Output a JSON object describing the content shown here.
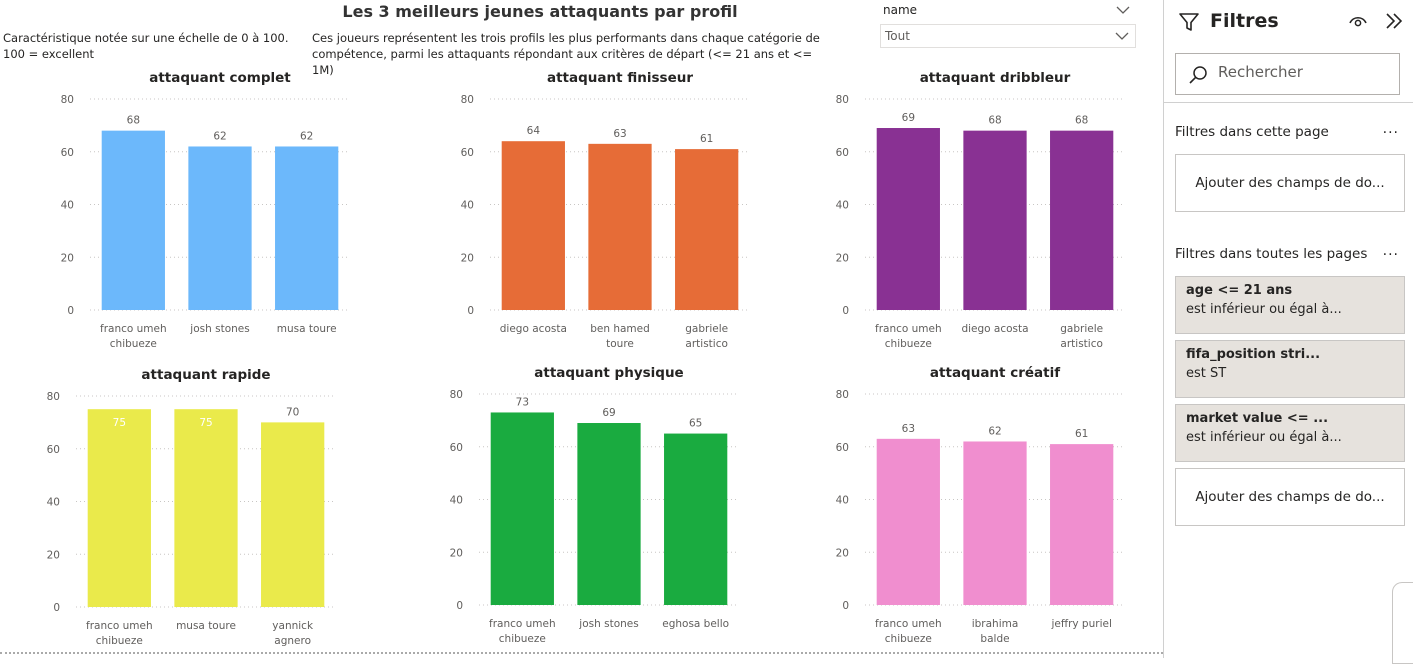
{
  "report": {
    "title": "Les 3 meilleurs jeunes attaquants par profil",
    "note_left": "Caractéristique notée sur une échelle de 0 à 100.\n100 = excellent",
    "note_mid": "Ces joueurs représentent les trois profils les plus performants dans chaque catégorie de\ncompétence, parmi les attaquants répondant aux critères de départ (<= 21 ans et <= 1M)",
    "slicer": {
      "label": "name",
      "value": "Tout"
    }
  },
  "chart_data": [
    {
      "type": "bar",
      "title": "attaquant complet",
      "color": "#6cb8fb",
      "ylim": [
        0,
        80
      ],
      "yticks": [
        0,
        20,
        40,
        60,
        80
      ],
      "grid": true,
      "categories": [
        "franco umeh\nchibueze",
        "josh stones",
        "musa toure"
      ],
      "values": [
        68,
        62,
        62
      ],
      "labels_inside": [
        false,
        false,
        false
      ]
    },
    {
      "type": "bar",
      "title": "attaquant finisseur",
      "color": "#e66c37",
      "ylim": [
        0,
        80
      ],
      "yticks": [
        0,
        20,
        40,
        60,
        80
      ],
      "grid": true,
      "categories": [
        "diego acosta",
        "ben hamed\ntoure",
        "gabriele\nartistico"
      ],
      "values": [
        64,
        63,
        61
      ],
      "labels_inside": [
        false,
        false,
        false
      ]
    },
    {
      "type": "bar",
      "title": "attaquant dribbleur",
      "color": "#893193",
      "ylim": [
        0,
        80
      ],
      "yticks": [
        0,
        20,
        40,
        60,
        80
      ],
      "grid": true,
      "categories": [
        "franco umeh\nchibueze",
        "diego acosta",
        "gabriele\nartistico"
      ],
      "values": [
        69,
        68,
        68
      ],
      "labels_inside": [
        false,
        false,
        false
      ]
    },
    {
      "type": "bar",
      "title": "attaquant rapide",
      "color": "#eaea4b",
      "ylim": [
        0,
        80
      ],
      "yticks": [
        0,
        20,
        40,
        60,
        80
      ],
      "grid": true,
      "categories": [
        "franco umeh\nchibueze",
        "musa toure",
        "yannick\nagnero"
      ],
      "values": [
        75,
        75,
        70
      ],
      "labels_inside": [
        true,
        true,
        false
      ]
    },
    {
      "type": "bar",
      "title": "attaquant physique",
      "color": "#1aab40",
      "ylim": [
        0,
        80
      ],
      "yticks": [
        0,
        20,
        40,
        60,
        80
      ],
      "grid": true,
      "categories": [
        "franco umeh\nchibueze",
        "josh stones",
        "eghosa bello"
      ],
      "values": [
        73,
        69,
        65
      ],
      "labels_inside": [
        false,
        false,
        false
      ]
    },
    {
      "type": "bar",
      "title": "attaquant créatif",
      "color": "#f08ecf",
      "ylim": [
        0,
        80
      ],
      "yticks": [
        0,
        20,
        40,
        60,
        80
      ],
      "grid": true,
      "categories": [
        "franco umeh\nchibueze",
        "ibrahima\nbalde",
        "jeffry puriel"
      ],
      "values": [
        63,
        62,
        61
      ],
      "labels_inside": [
        false,
        false,
        false
      ]
    }
  ],
  "filters_pane": {
    "title": "Filtres",
    "search_placeholder": "Rechercher",
    "page_section": {
      "title": "Filtres dans cette page",
      "more": "...",
      "add_label": "Ajouter des champs de do..."
    },
    "all_pages_section": {
      "title": "Filtres dans toutes les pages",
      "more": "...",
      "add_label": "Ajouter des champs de do..."
    },
    "cards": [
      {
        "field": "age",
        "condition": "<= 21 ans",
        "subtitle": "est inférieur ou égal à..."
      },
      {
        "field": "fifa_position stri...",
        "condition": "",
        "subtitle": "est ST"
      },
      {
        "field": "market value",
        "condition": "<= ...",
        "subtitle": "est inférieur ou égal à..."
      }
    ],
    "icons": {
      "funnel": "filter-icon",
      "eye": "eye-icon",
      "collapse": "chevron-double-right-icon",
      "search": "search-icon"
    }
  }
}
